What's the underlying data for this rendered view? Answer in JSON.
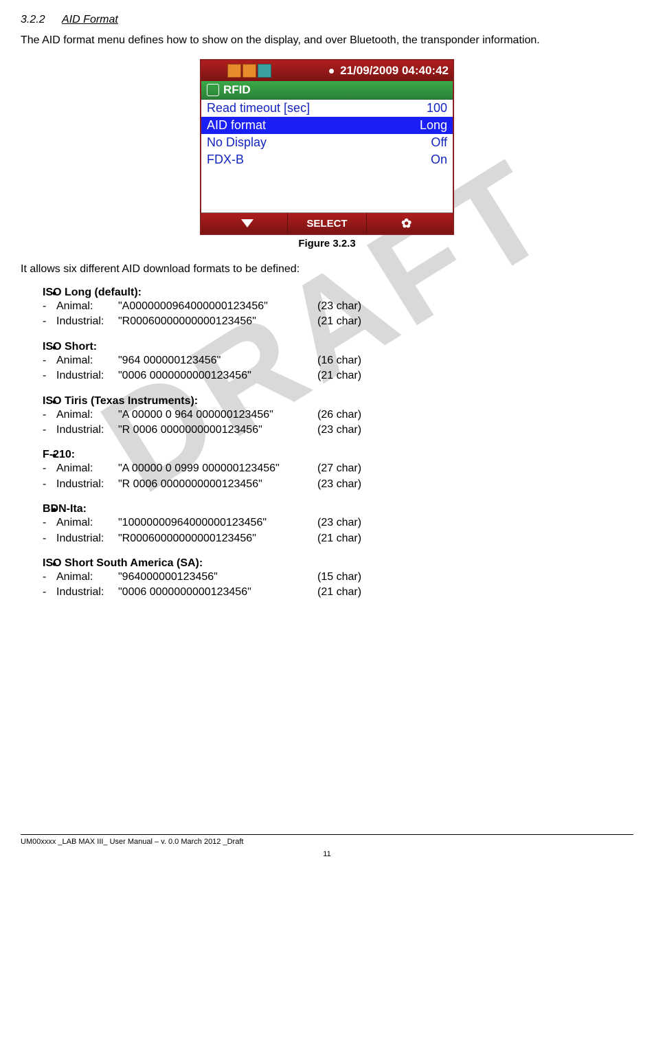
{
  "section": {
    "number": "3.2.2",
    "title": "AID Format"
  },
  "intro": "The AID format menu defines how to show on the display, and over Bluetooth, the transponder information.",
  "device": {
    "date": "21/09/2009 04:40:42",
    "rfid_label": "RFID",
    "rows": [
      {
        "label": "Read timeout [sec]",
        "value": "100",
        "selected": false
      },
      {
        "label": "AID format",
        "value": "Long",
        "selected": true
      },
      {
        "label": "No Display",
        "value": "Off",
        "selected": false
      },
      {
        "label": "FDX-B",
        "value": "On",
        "selected": false
      }
    ],
    "select_btn": "SELECT"
  },
  "figure_caption": "Figure 3.2.3",
  "formats_intro": "It allows six different AID download formats to be defined:",
  "formats": [
    {
      "name": "ISO Long (default):",
      "items": [
        {
          "type": "Animal:",
          "value": "\"A0000000964000000123456\"",
          "chars": "(23 char)"
        },
        {
          "type": "Industrial:",
          "value": "\"R00060000000000123456\"",
          "chars": "(21 char)"
        }
      ]
    },
    {
      "name": "ISO Short:",
      "items": [
        {
          "type": "Animal:",
          "value": "\"964 000000123456\"",
          "chars": "(16 char)"
        },
        {
          "type": "Industrial:",
          "value": "\"0006 0000000000123456\"",
          "chars": "(21 char)"
        }
      ]
    },
    {
      "name": "ISO Tiris (Texas Instruments):",
      "items": [
        {
          "type": "Animal:",
          "value": "\"A 00000 0 964 000000123456\"",
          "chars": "(26 char)"
        },
        {
          "type": "Industrial:",
          "value": "\"R 0006 0000000000123456\"",
          "chars": "(23 char)"
        }
      ]
    },
    {
      "name": "F-210:",
      "items": [
        {
          "type": "Animal:",
          "value": "\"A 00000 0 0999 000000123456\"",
          "chars": "(27 char)"
        },
        {
          "type": "Industrial:",
          "value": "\"R 0006 0000000000123456\"",
          "chars": "(23 char)"
        }
      ]
    },
    {
      "name": "BDN-Ita:",
      "items": [
        {
          "type": "Animal:",
          "value": "\"10000000964000000123456\"",
          "chars": "(23 char)"
        },
        {
          "type": "Industrial:",
          "value": "\"R00060000000000123456\"",
          "chars": "(21 char)"
        }
      ]
    },
    {
      "name": "ISO Short South America (SA):",
      "items": [
        {
          "type": "Animal:",
          "value": "\"964000000123456\"",
          "chars": "(15 char)"
        },
        {
          "type": "Industrial:",
          "value": "\"0006 0000000000123456\"",
          "chars": "(21 char)"
        }
      ]
    }
  ],
  "footer": {
    "text": "UM00xxxx _LAB MAX III_ User Manual – v. 0.0 March 2012 _Draft",
    "page": "11"
  },
  "watermark": "DRAFT"
}
